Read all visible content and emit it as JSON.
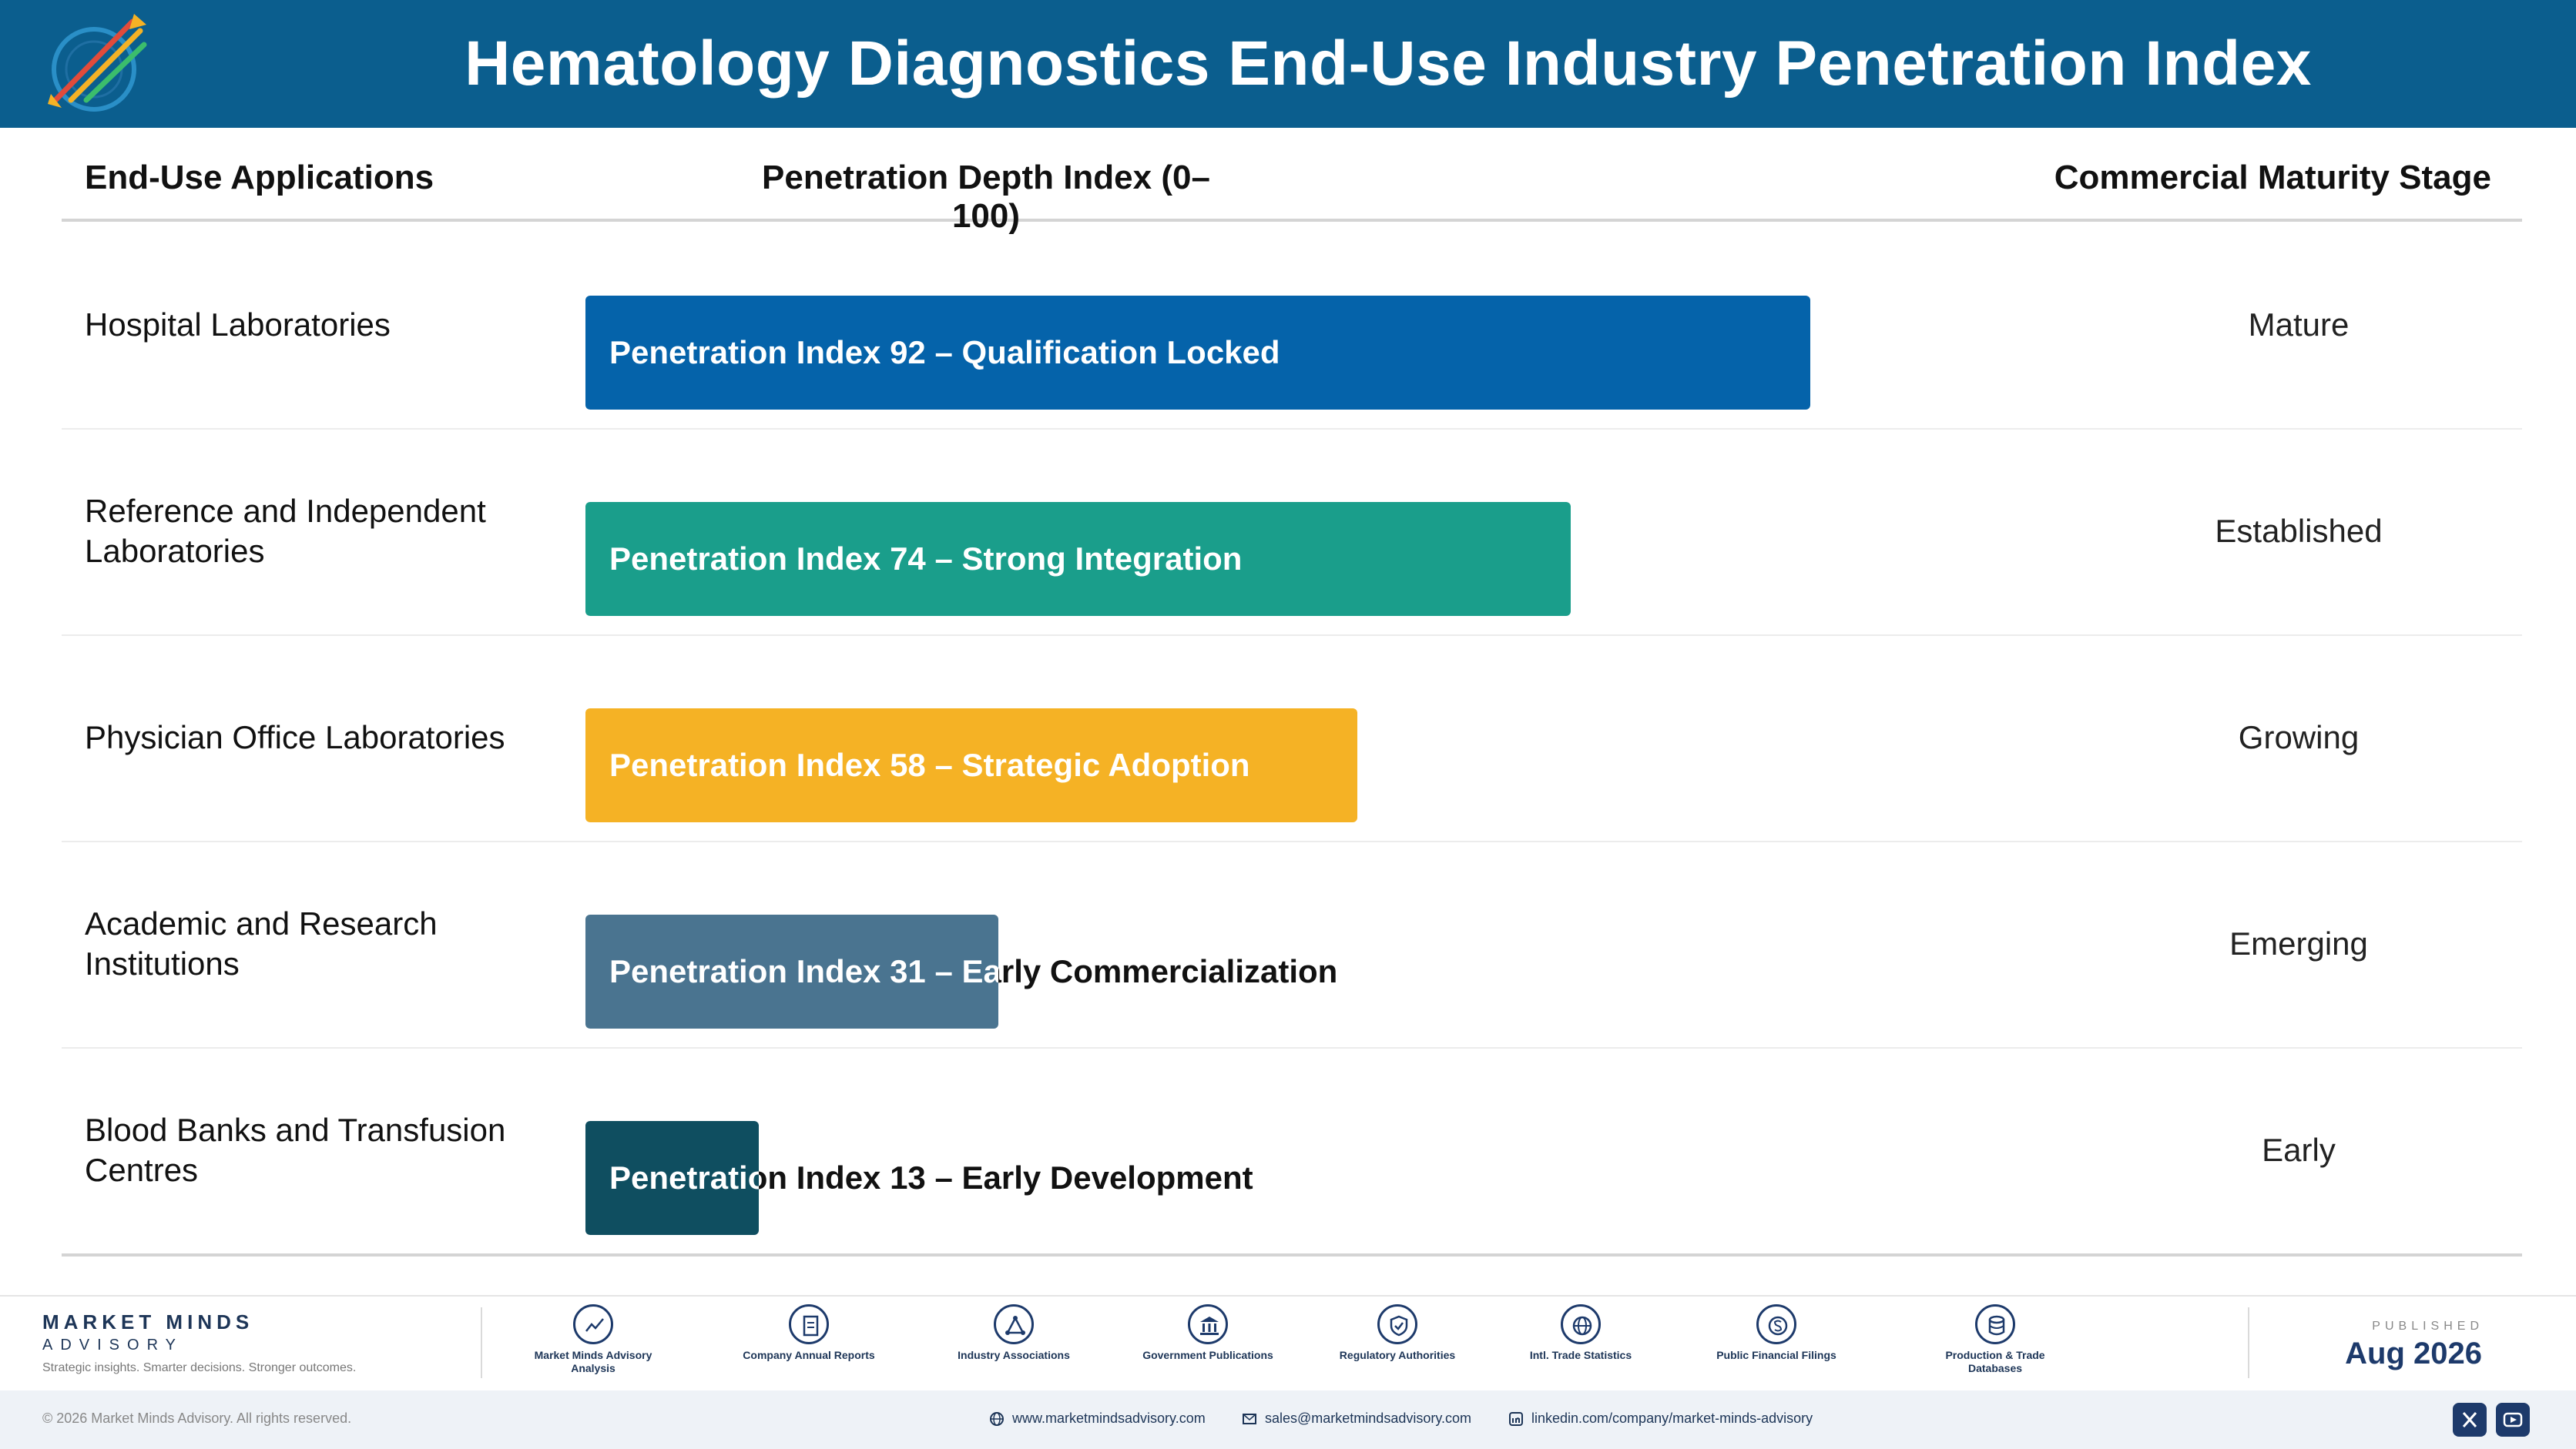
{
  "header": {
    "title": "Hematology Diagnostics End-Use Industry Penetration Index"
  },
  "columns": {
    "applications": "End-Use Applications",
    "depth": "Penetration Depth Index (0–100)",
    "stage": "Commercial Maturity Stage"
  },
  "chart_data": {
    "type": "bar",
    "orientation": "horizontal",
    "categories": [
      "Hospital Laboratories",
      "Reference and Independent Laboratories",
      "Physician Office Laboratories",
      "Academic and Research Institutions",
      "Blood Banks and Transfusion Centres"
    ],
    "values": [
      92,
      74,
      58,
      31,
      13
    ],
    "xlim": [
      0,
      100
    ],
    "bar_labels": [
      "Penetration Index 92 – Qualification Locked",
      "Penetration Index 74 – Strong Integration",
      "Penetration Index 58 – Strategic Adoption",
      "Penetration Index 31 – Early Commercialization",
      "Penetration Index 13 – Early Development"
    ],
    "stages": [
      "Mature",
      "Established",
      "Growing",
      "Emerging",
      "Early"
    ],
    "colors": [
      "#0563aa",
      "#1a9e8b",
      "#f5b225",
      "#4a7490",
      "#0f4e60"
    ]
  },
  "footer": {
    "brand_name": "MARKET MINDS",
    "brand_sub": "ADVISORY",
    "tagline": "Strategic insights. Smarter decisions. Stronger outcomes.",
    "sources": [
      {
        "icon": "trend-chart-icon",
        "label": "Market Minds Advisory Analysis"
      },
      {
        "icon": "document-icon",
        "label": "Company Annual Reports"
      },
      {
        "icon": "network-icon",
        "label": "Industry Associations"
      },
      {
        "icon": "government-building-icon",
        "label": "Government Publications"
      },
      {
        "icon": "shield-check-icon",
        "label": "Regulatory Authorities"
      },
      {
        "icon": "globe-icon",
        "label": "Intl. Trade Statistics"
      },
      {
        "icon": "dollar-coin-icon",
        "label": "Public Financial Filings"
      },
      {
        "icon": "database-icon",
        "label": "Production & Trade Databases"
      }
    ],
    "published_label": "PUBLISHED",
    "published_date": "Aug 2026",
    "copyright": "© 2026 Market Minds Advisory. All rights reserved.",
    "website": "www.marketmindsadvisory.com",
    "email": "sales@marketmindsadvisory.com",
    "linkedin": "linkedin.com/company/market-minds-advisory"
  }
}
